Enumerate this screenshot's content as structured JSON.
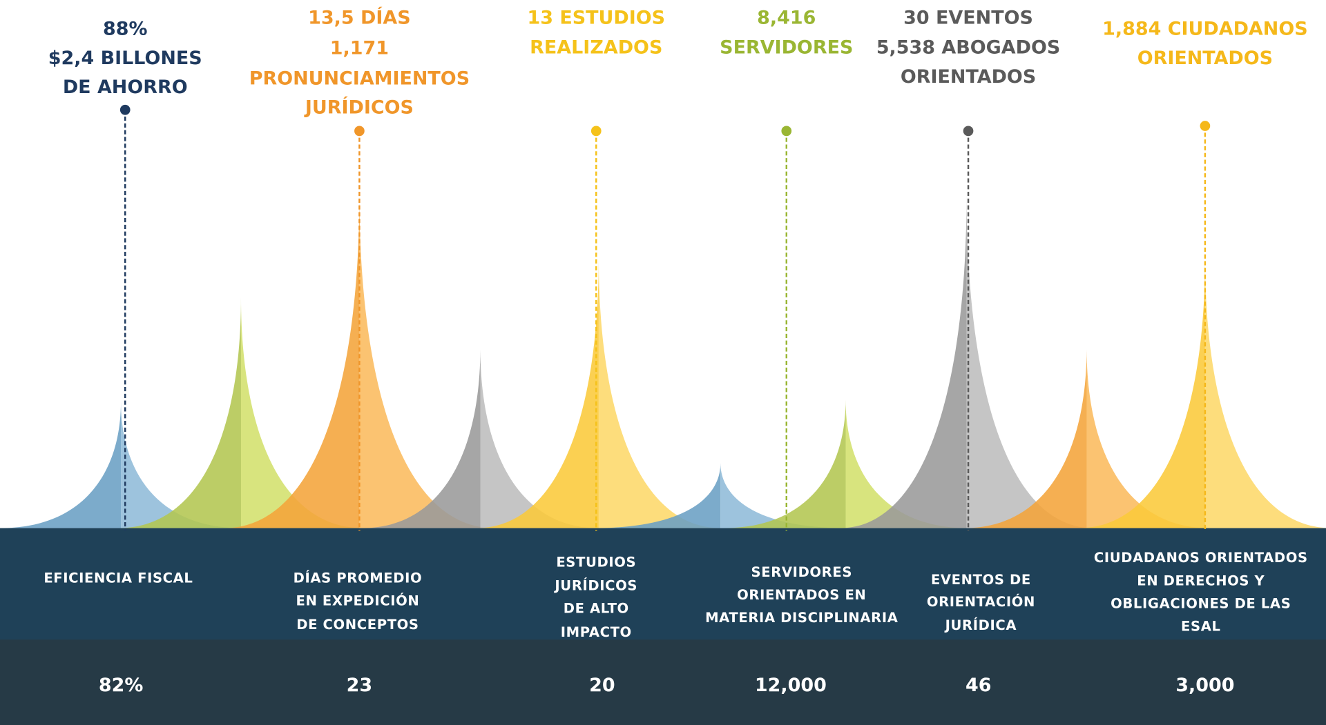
{
  "items": [
    {
      "color": "#1f3a5f",
      "highlight": [
        "88%",
        "$2,4 BILLONES",
        "DE AHORRO"
      ],
      "label": [
        "EFICIENCIA FISCAL"
      ],
      "value": "82%"
    },
    {
      "color": "#f0962a",
      "highlight": [
        "13,5 DÍAS",
        "1,171",
        "PRONUNCIAMIENTOS",
        "JURÍDICOS"
      ],
      "label": [
        "DÍAS PROMEDIO",
        "EN EXPEDICIÓN",
        "DE CONCEPTOS"
      ],
      "value": "23"
    },
    {
      "color": "#f5c21a",
      "highlight": [
        "13 ESTUDIOS",
        "REALIZADOS"
      ],
      "label": [
        "ESTUDIOS",
        "JURÍDICOS",
        "DE ALTO",
        "IMPACTO"
      ],
      "value": "20"
    },
    {
      "color": "#9ab633",
      "highlight": [
        "8,416",
        "SERVIDORES"
      ],
      "label": [
        "SERVIDORES",
        "ORIENTADOS EN",
        "MATERIA DISCIPLINARIA"
      ],
      "value": "12,000"
    },
    {
      "color": "#5a5a5a",
      "highlight": [
        "30 EVENTOS",
        "5,538 ABOGADOS",
        "ORIENTADOS"
      ],
      "label": [
        "EVENTOS DE",
        "ORIENTACIÓN",
        "JURÍDICA"
      ],
      "value": "46"
    },
    {
      "color": "#f5b81a",
      "highlight": [
        "1,884 CIUDADANOS",
        "ORIENTADOS"
      ],
      "label": [
        "CIUDADANOS ORIENTADOS",
        "EN DERECHOS Y",
        "OBLIGACIONES DE LAS",
        "ESAL"
      ],
      "value": "3,000"
    }
  ]
}
